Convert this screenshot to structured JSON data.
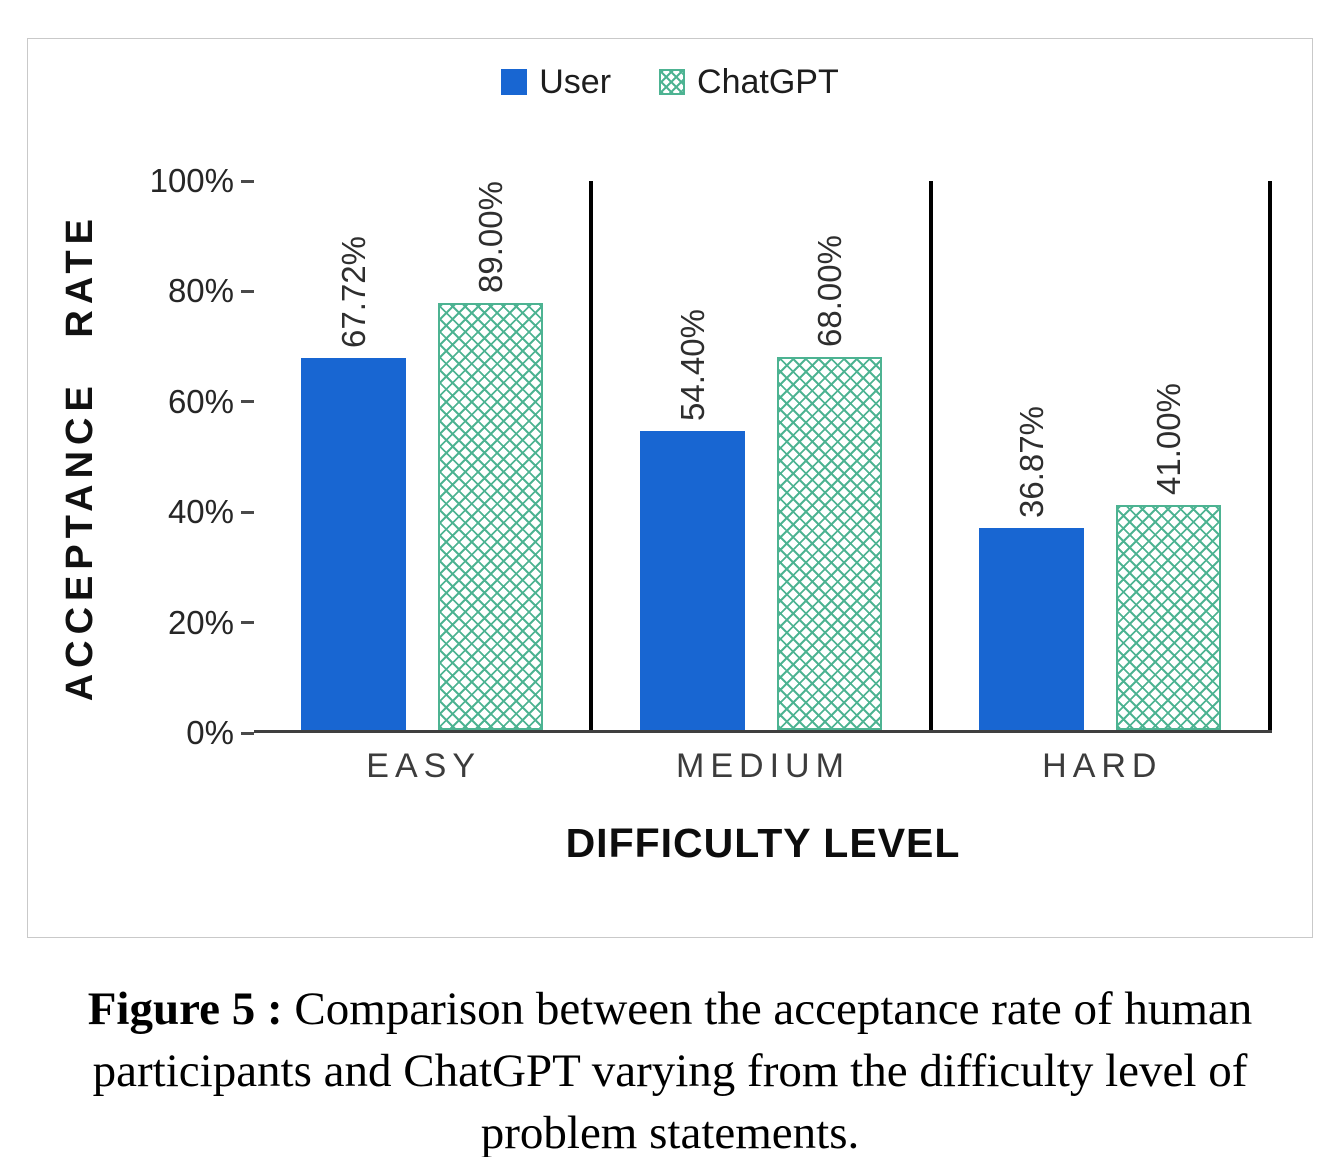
{
  "chart_data": {
    "type": "bar",
    "categories": [
      "EASY",
      "MEDIUM",
      "HARD"
    ],
    "series": [
      {
        "name": "User",
        "style": "solid",
        "color": "#1866d2",
        "values": [
          67.72,
          54.4,
          36.87
        ],
        "labels": [
          "67.72%",
          "54.40%",
          "36.87%"
        ]
      },
      {
        "name": "ChatGPT",
        "style": "hatch",
        "color": "#4db392",
        "values": [
          89.0,
          68.0,
          41.0
        ],
        "labels": [
          "89.00%",
          "68.00%",
          "41.00%"
        ]
      }
    ],
    "title": "",
    "ylabel": "ACCEPTANCE RATE",
    "xlabel": "DIFFICULTY LEVEL",
    "ylim": [
      0,
      100
    ],
    "yticks": [
      "0%",
      "20%",
      "40%",
      "60%",
      "80%",
      "100%"
    ],
    "grid": false,
    "legend_position": "top"
  },
  "caption": {
    "label": "Figure 5 :",
    "text": " Comparison between the acceptance rate of human participants and ChatGPT varying from the difficulty level of problem statements."
  }
}
